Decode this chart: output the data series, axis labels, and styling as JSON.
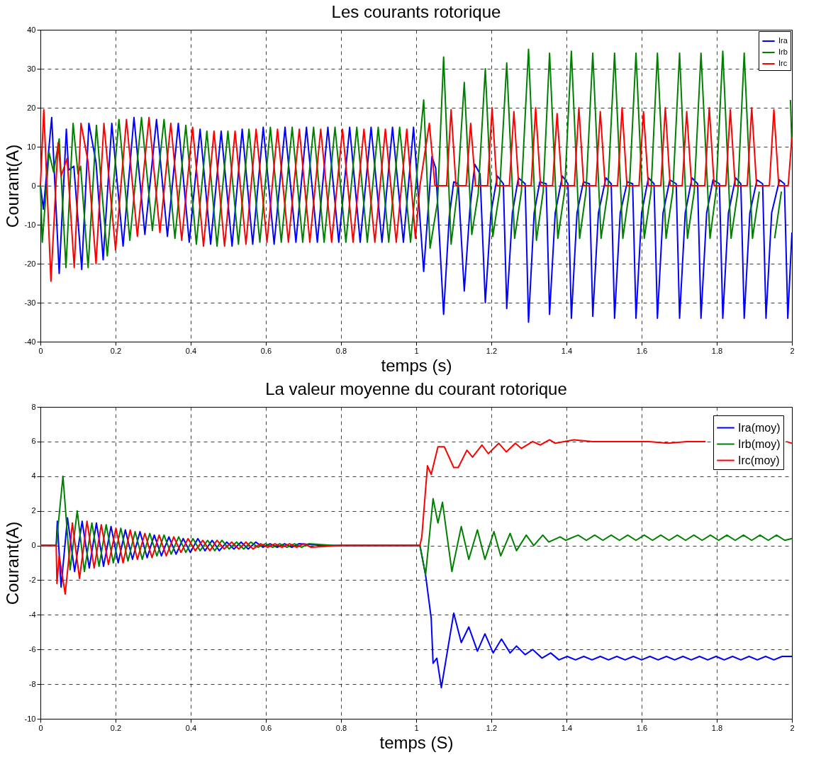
{
  "chart_data": [
    {
      "type": "line",
      "title": "Les courants rotorique",
      "xlabel": "temps (s)",
      "ylabel": "Courant(A)",
      "xlim": [
        0,
        2
      ],
      "xticks": [
        0,
        0.2,
        0.4,
        0.6,
        0.8,
        1,
        1.2,
        1.4,
        1.6,
        1.8,
        2
      ],
      "ylim": [
        -40,
        40
      ],
      "yticks": [
        -40,
        -30,
        -20,
        -10,
        0,
        10,
        20,
        30,
        40
      ],
      "grid": true,
      "legend": "top right",
      "series": [
        {
          "name": "Ira",
          "color": "#0000ff",
          "x": [
            0,
            0.008,
            0.03,
            0.05,
            0.069,
            0.075,
            0.089,
            0.11,
            0.129,
            0.148,
            0.167,
            0.19,
            0.22,
            0.249,
            0.278,
            0.309,
            0.338,
            0.367,
            0.396,
            0.425,
            0.453,
            0.481,
            0.51,
            0.537,
            0.565,
            0.593,
            0.622,
            0.651,
            0.68,
            0.708,
            0.737,
            0.765,
            0.794,
            0.823,
            0.851,
            0.88,
            0.909,
            0.937,
            0.966,
            0.993,
            1.02,
            1.042,
            1.052,
            1.073,
            1.088,
            1.1,
            1.112,
            1.128,
            1.143,
            1.156,
            1.17,
            1.184,
            1.199,
            1.216,
            1.232,
            1.241,
            1.256,
            1.272,
            1.29,
            1.299,
            1.314,
            1.329,
            1.346,
            1.355,
            1.37,
            1.389,
            1.404,
            1.413,
            1.428,
            1.445,
            1.461,
            1.47,
            1.485,
            1.505,
            1.519,
            1.528,
            1.543,
            1.562,
            1.576,
            1.585,
            1.6,
            1.618,
            1.633,
            1.642,
            1.657,
            1.675,
            1.692,
            1.701,
            1.716,
            1.734,
            1.749,
            1.758,
            1.773,
            1.79,
            1.807,
            1.816,
            1.831,
            1.85,
            1.864,
            1.873,
            1.888,
            1.907,
            1.922,
            1.931,
            1.946,
            1.967,
            1.98,
            1.989,
            2.0
          ],
          "values": [
            0,
            -6,
            17.5,
            -22.5,
            14.5,
            4,
            5,
            -21.5,
            16,
            6,
            -19,
            16,
            -15.5,
            17.5,
            -12.5,
            17,
            -13,
            16,
            -14.5,
            14.5,
            -15,
            14,
            -15.5,
            14.5,
            -15,
            15,
            -15,
            15,
            -14.5,
            15,
            -14.5,
            15,
            -14.5,
            15,
            -14.5,
            15,
            -14.5,
            15,
            -14.5,
            15,
            -22,
            7.5,
            4.5,
            -33,
            -8,
            1,
            0.5,
            -27,
            -6,
            5.5,
            3,
            -30,
            -7,
            2.5,
            0.5,
            -31.5,
            -7,
            2,
            0.5,
            -35,
            -7,
            1,
            0.5,
            -33,
            -7,
            2.5,
            0.5,
            -34,
            -7,
            1,
            0.5,
            -33.5,
            -7,
            2,
            0.5,
            -34,
            -7,
            1,
            0.5,
            -34,
            -7,
            2,
            0.5,
            -34,
            -7,
            1.5,
            0.5,
            -34,
            -7,
            2,
            0.5,
            -34,
            -7,
            1.5,
            0.5,
            -34,
            -7,
            2,
            0.5,
            -34,
            -7,
            1.5,
            0.5,
            -34,
            -7,
            1.5,
            0.5,
            -34,
            -12
          ]
        },
        {
          "name": "Irb",
          "color": "#008000",
          "x": [
            0,
            0.005,
            0.023,
            0.035,
            0.05,
            0.068,
            0.087,
            0.1,
            0.107,
            0.127,
            0.149,
            0.178,
            0.209,
            0.238,
            0.269,
            0.298,
            0.329,
            0.358,
            0.387,
            0.415,
            0.443,
            0.47,
            0.499,
            0.527,
            0.555,
            0.584,
            0.612,
            0.641,
            0.67,
            0.698,
            0.727,
            0.755,
            0.784,
            0.813,
            0.842,
            0.87,
            0.899,
            0.927,
            0.956,
            0.985,
            1.02,
            1.037,
            1.057,
            1.073,
            1.093,
            1.11,
            1.128,
            1.148,
            1.165,
            1.184,
            1.204,
            1.222,
            1.241,
            1.262,
            1.28,
            1.299,
            1.32,
            1.338,
            1.355,
            1.377,
            1.395,
            1.413,
            1.435,
            1.452,
            1.47,
            1.492,
            1.51,
            1.528,
            1.55,
            1.567,
            1.585,
            1.607,
            1.625,
            1.642,
            1.665,
            1.683,
            1.701,
            1.722,
            1.74,
            1.758,
            1.782,
            1.798,
            1.816,
            1.838,
            1.856,
            1.873,
            1.895,
            1.913,
            1.931,
            1.954,
            1.972,
            1.989,
            1.996,
            2.0
          ],
          "values": [
            0,
            -14.5,
            8.5,
            3.5,
            12,
            -21,
            16,
            3,
            5,
            -21,
            15.5,
            -18,
            17,
            -14,
            17.5,
            -11.5,
            17,
            -13.5,
            15.5,
            -15,
            14,
            -15.5,
            14,
            -15,
            14.5,
            -14.5,
            15,
            -14.5,
            15,
            -14.5,
            15,
            -14.5,
            15,
            -14.5,
            15,
            -14.5,
            15,
            -14.5,
            15,
            -14.5,
            22,
            -16,
            -4,
            33,
            -15,
            -1,
            26.5,
            -12.5,
            -2,
            30,
            -13,
            -1.5,
            31.5,
            -13.5,
            -1.5,
            35,
            -14,
            -1.5,
            34,
            -13.5,
            -1.5,
            34.5,
            -13.5,
            -1.5,
            34,
            -13.5,
            -1.5,
            34,
            -13.5,
            -1.5,
            34,
            -13.5,
            -1.5,
            34,
            -13.5,
            -1.5,
            34,
            -13.5,
            -1.5,
            34,
            -13.5,
            -1.5,
            34.5,
            -13.5,
            -1.5,
            34,
            -13.5,
            -1.5,
            null,
            -13.5,
            -1.5,
            null,
            22,
            10
          ]
        },
        {
          "name": "Irc",
          "color": "#ff0000",
          "x": [
            0,
            0.009,
            0.028,
            0.047,
            0.055,
            0.071,
            0.09,
            0.108,
            0.127,
            0.148,
            0.169,
            0.2,
            0.229,
            0.258,
            0.289,
            0.318,
            0.347,
            0.376,
            0.405,
            0.434,
            0.462,
            0.49,
            0.518,
            0.547,
            0.574,
            0.603,
            0.631,
            0.66,
            0.689,
            0.717,
            0.746,
            0.775,
            0.804,
            0.832,
            0.861,
            0.89,
            0.918,
            0.947,
            0.975,
            0.998,
            1.01,
            1.035,
            1.05,
            1.081,
            1.093,
            1.106,
            1.133,
            1.145,
            1.158,
            1.19,
            1.202,
            1.215,
            1.248,
            1.26,
            1.273,
            1.306,
            1.318,
            1.331,
            1.363,
            1.375,
            1.388,
            1.421,
            1.433,
            1.446,
            1.478,
            1.49,
            1.503,
            1.536,
            1.548,
            1.561,
            1.593,
            1.605,
            1.618,
            1.651,
            1.663,
            1.676,
            1.708,
            1.72,
            1.733,
            1.768,
            1.78,
            1.793,
            1.824,
            1.836,
            1.849,
            1.881,
            1.893,
            1.906,
            1.94,
            1.952,
            1.965,
            1.99,
            2.0
          ],
          "values": [
            0,
            19.5,
            -24.5,
            11,
            2.5,
            7,
            -21,
            16,
            6,
            -20,
            16,
            -16.5,
            17,
            -13,
            17.5,
            -12,
            16,
            -14,
            15,
            -15.5,
            14,
            -15.5,
            14,
            -15,
            14.5,
            -14.5,
            14.5,
            -14.5,
            14.5,
            -14.5,
            14.5,
            -14.5,
            14.5,
            -14.5,
            14.5,
            -14.5,
            14.5,
            -14.5,
            14.5,
            -13.5,
            0,
            16,
            0,
            0,
            19.5,
            0,
            0,
            16,
            0,
            0,
            20,
            0,
            0,
            19,
            0,
            0,
            20,
            0,
            0,
            18.5,
            0,
            0,
            20,
            0,
            0,
            19,
            0,
            0,
            20,
            0,
            0,
            19,
            0,
            0,
            20,
            0,
            0,
            19,
            0,
            0,
            20,
            0,
            0,
            19.5,
            0,
            0,
            20,
            0,
            0,
            19.5,
            0,
            0,
            12.5
          ]
        }
      ]
    },
    {
      "type": "line",
      "title": "La valeur moyenne du courant rotorique",
      "xlabel": "temps (S)",
      "ylabel": "Courant(A)",
      "xlim": [
        0,
        2
      ],
      "xticks": [
        0,
        0.2,
        0.4,
        0.6,
        0.8,
        1,
        1.2,
        1.4,
        1.6,
        1.8,
        2
      ],
      "ylim": [
        -10,
        8
      ],
      "yticks": [
        -10,
        -8,
        -6,
        -4,
        -2,
        0,
        2,
        4,
        6,
        8
      ],
      "grid": true,
      "legend": "top right",
      "series": [
        {
          "name": "Ira(moy)",
          "color": "#0000ff",
          "x": [
            0,
            0.042,
            0.045,
            0.055,
            0.072,
            0.091,
            0.111,
            0.13,
            0.149,
            0.168,
            0.188,
            0.207,
            0.226,
            0.245,
            0.265,
            0.284,
            0.303,
            0.322,
            0.342,
            0.361,
            0.38,
            0.399,
            0.419,
            0.438,
            0.457,
            0.476,
            0.496,
            0.515,
            0.534,
            0.553,
            0.573,
            0.592,
            0.611,
            0.63,
            0.65,
            0.669,
            0.688,
            0.75,
            1.01,
            1.025,
            1.04,
            1.045,
            1.055,
            1.067,
            1.1,
            1.12,
            1.14,
            1.163,
            1.183,
            1.205,
            1.227,
            1.25,
            1.267,
            1.29,
            1.31,
            1.335,
            1.358,
            1.38,
            1.402,
            1.424,
            1.446,
            1.468,
            1.49,
            1.512,
            1.534,
            1.556,
            1.578,
            1.6,
            1.622,
            1.644,
            1.666,
            1.688,
            1.71,
            1.732,
            1.754,
            1.776,
            1.798,
            1.82,
            1.842,
            1.864,
            1.886,
            1.908,
            1.93,
            1.952,
            1.974,
            2.0
          ],
          "values": [
            0,
            0,
            1.4,
            -2.4,
            1.6,
            -1.5,
            1.4,
            -1.3,
            1.3,
            -1.2,
            1.1,
            -1.0,
            0.9,
            -0.8,
            0.8,
            -0.7,
            0.6,
            -0.6,
            0.5,
            -0.5,
            0.4,
            -0.4,
            0.4,
            -0.3,
            0.3,
            -0.3,
            0.2,
            -0.2,
            0.2,
            -0.2,
            0.2,
            -0.1,
            0.1,
            -0.1,
            0.1,
            -0.1,
            0.1,
            0,
            0,
            -1.7,
            -4.2,
            -6.8,
            -6.5,
            -8.2,
            -3.9,
            -5.6,
            -4.7,
            -6.1,
            -5.1,
            -6.2,
            -5.4,
            -6.2,
            -5.8,
            -6.3,
            -6.0,
            -6.5,
            -6.2,
            -6.6,
            -6.4,
            -6.6,
            -6.4,
            -6.6,
            -6.4,
            -6.6,
            -6.4,
            -6.6,
            -6.4,
            -6.6,
            -6.4,
            -6.6,
            -6.4,
            -6.6,
            -6.4,
            -6.6,
            -6.4,
            -6.6,
            -6.4,
            -6.6,
            -6.4,
            -6.6,
            -6.4,
            -6.6,
            -6.4,
            -6.6,
            -6.4,
            -6.4
          ]
        },
        {
          "name": "Irb(moy)",
          "color": "#008000",
          "x": [
            0,
            0.042,
            0.06,
            0.079,
            0.098,
            0.117,
            0.137,
            0.156,
            0.175,
            0.194,
            0.214,
            0.233,
            0.252,
            0.271,
            0.291,
            0.31,
            0.329,
            0.348,
            0.368,
            0.387,
            0.406,
            0.425,
            0.445,
            0.464,
            0.483,
            0.502,
            0.522,
            0.541,
            0.56,
            0.579,
            0.599,
            0.618,
            0.637,
            0.656,
            0.676,
            0.695,
            0.714,
            0.78,
            1.01,
            1.025,
            1.045,
            1.058,
            1.07,
            1.095,
            1.12,
            1.14,
            1.163,
            1.183,
            1.207,
            1.225,
            1.25,
            1.267,
            1.293,
            1.313,
            1.337,
            1.353,
            1.383,
            1.398,
            1.431,
            1.453,
            1.475,
            1.497,
            1.519,
            1.541,
            1.563,
            1.585,
            1.607,
            1.629,
            1.651,
            1.673,
            1.695,
            1.717,
            1.739,
            1.761,
            1.783,
            1.805,
            1.827,
            1.849,
            1.871,
            1.893,
            1.915,
            1.937,
            1.959,
            1.981,
            2.0
          ],
          "values": [
            0,
            0,
            4.0,
            -1.4,
            2.0,
            -1.5,
            1.3,
            -1.2,
            1.2,
            -1.0,
            1.0,
            -0.9,
            0.8,
            -0.8,
            0.7,
            -0.6,
            0.6,
            -0.5,
            0.5,
            -0.4,
            0.4,
            -0.3,
            0.3,
            -0.3,
            0.3,
            -0.2,
            0.2,
            -0.2,
            0.2,
            -0.1,
            0.1,
            -0.1,
            0.1,
            -0.1,
            0.1,
            -0.1,
            0.1,
            0,
            0,
            -1.7,
            2.7,
            1.3,
            2.5,
            -1.5,
            1.1,
            -0.8,
            0.9,
            -0.8,
            0.8,
            -0.6,
            0.7,
            -0.3,
            0.6,
            0.0,
            0.6,
            0.2,
            0.5,
            0.3,
            0.6,
            0.3,
            0.6,
            0.3,
            0.6,
            0.3,
            0.6,
            0.3,
            0.6,
            0.3,
            0.6,
            0.3,
            0.6,
            0.3,
            0.6,
            0.3,
            0.6,
            0.3,
            0.6,
            0.3,
            0.6,
            0.3,
            0.6,
            0.3,
            0.6,
            0.3,
            0.4
          ]
        },
        {
          "name": "Irc(moy)",
          "color": "#ff0000",
          "x": [
            0,
            0.042,
            0.044,
            0.05,
            0.066,
            0.085,
            0.104,
            0.124,
            0.143,
            0.162,
            0.181,
            0.201,
            0.22,
            0.239,
            0.258,
            0.278,
            0.297,
            0.316,
            0.335,
            0.355,
            0.374,
            0.393,
            0.412,
            0.432,
            0.451,
            0.47,
            0.489,
            0.509,
            0.528,
            0.547,
            0.566,
            0.586,
            0.605,
            0.624,
            0.643,
            0.663,
            0.682,
            0.701,
            0.72,
            0.8,
            1.01,
            1.015,
            1.03,
            1.04,
            1.058,
            1.075,
            1.1,
            1.112,
            1.135,
            1.15,
            1.175,
            1.192,
            1.22,
            1.24,
            1.264,
            1.28,
            1.31,
            1.33,
            1.355,
            1.37,
            1.42,
            1.47,
            1.52,
            1.57,
            1.62,
            1.67,
            1.72,
            1.77,
            1.82,
            1.87,
            1.92,
            1.97,
            1.985,
            2.0
          ],
          "values": [
            0,
            0,
            -2.2,
            -0.6,
            -2.8,
            1.3,
            -1.9,
            1.4,
            -1.3,
            1.2,
            -1.1,
            1.0,
            -1.0,
            0.9,
            -0.8,
            0.7,
            -0.7,
            0.6,
            -0.6,
            0.5,
            -0.4,
            0.4,
            -0.3,
            0.3,
            -0.3,
            0.3,
            -0.2,
            0.2,
            -0.2,
            0.2,
            -0.2,
            0.1,
            -0.1,
            0.1,
            -0.1,
            0.1,
            -0.1,
            0.1,
            -0.1,
            0,
            0,
            0.5,
            4.6,
            4.1,
            5.7,
            5.7,
            4.5,
            4.5,
            5.5,
            5.1,
            5.8,
            5.3,
            5.9,
            5.4,
            5.9,
            5.6,
            6.0,
            5.8,
            6.1,
            5.9,
            6.1,
            6.0,
            6.0,
            6.0,
            6.0,
            5.9,
            6.0,
            6.0,
            null,
            null,
            null,
            null,
            6.0,
            5.9
          ]
        }
      ]
    }
  ]
}
